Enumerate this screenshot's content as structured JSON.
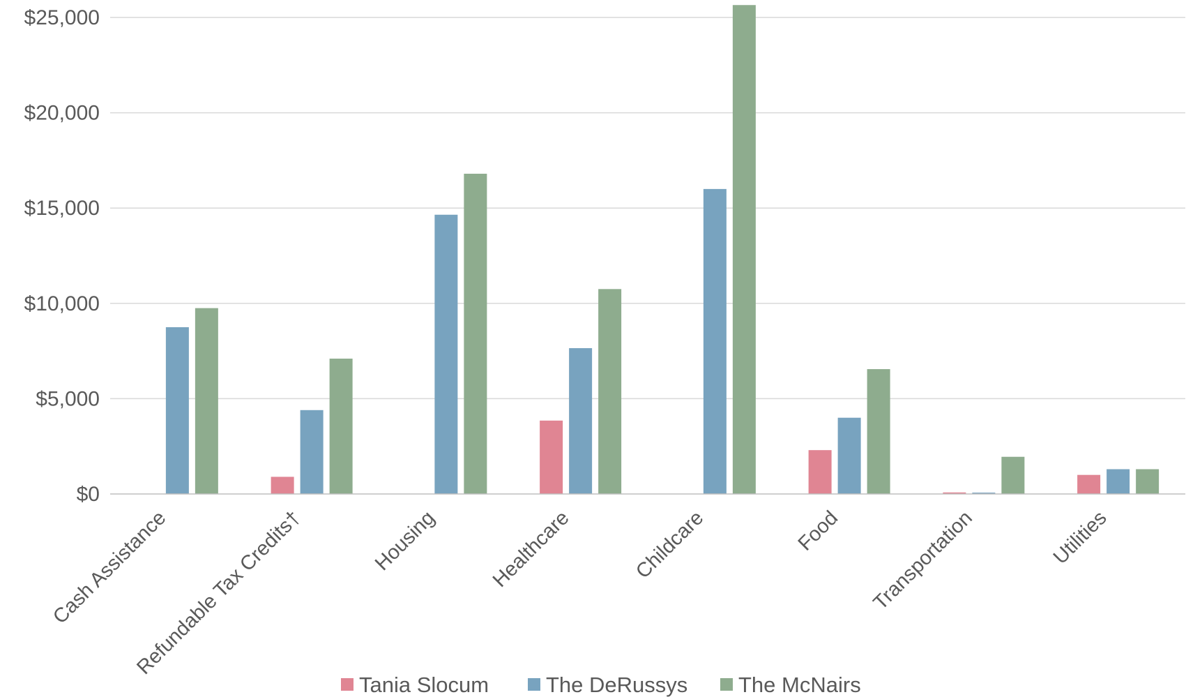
{
  "chart_data": {
    "type": "bar",
    "categories": [
      "Cash Assistance",
      "Refundable Tax Credits†",
      "Housing",
      "Healthcare",
      "Childcare",
      "Food",
      "Transportation",
      "Utilities"
    ],
    "series": [
      {
        "name": "Tania Slocum",
        "color": "#e08593",
        "values": [
          0,
          900,
          0,
          3850,
          0,
          2300,
          80,
          1000
        ]
      },
      {
        "name": "The DeRussys",
        "color": "#78a3bf",
        "values": [
          8750,
          4400,
          14650,
          7650,
          16000,
          4000,
          70,
          1300
        ]
      },
      {
        "name": "The McNairs",
        "color": "#8eac8e",
        "values": [
          9750,
          7100,
          16800,
          10750,
          25650,
          6550,
          1950,
          1300
        ]
      }
    ],
    "y_ticks": [
      "$0",
      "$5,000",
      "$10,000",
      "$15,000",
      "$20,000",
      "$25,000"
    ],
    "y_tick_values": [
      0,
      5000,
      10000,
      15000,
      20000,
      25000
    ],
    "ylim": [
      0,
      25650
    ],
    "grid": true,
    "legend_position": "bottom",
    "title": "",
    "xlabel": "",
    "ylabel": ""
  }
}
